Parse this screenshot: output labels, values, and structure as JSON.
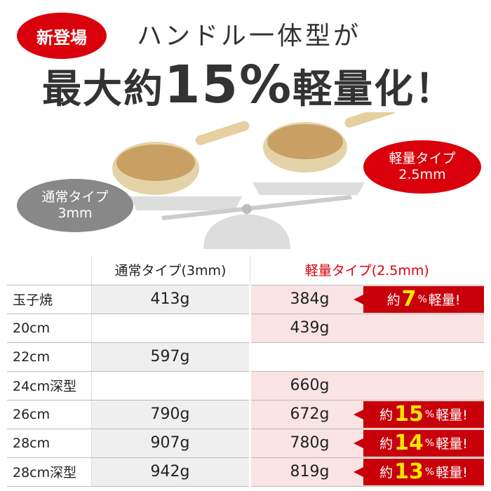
{
  "badge": "新登場",
  "headline1": "ハンドル一体型が",
  "headline2": {
    "pre": "最大約",
    "num": "15%",
    "post": "軽量化！"
  },
  "bubbles": {
    "normal": [
      "通常タイプ",
      "3mm"
    ],
    "light": [
      "軽量タイプ",
      "2.5mm"
    ]
  },
  "table": {
    "headers": [
      "",
      "通常タイプ(3mm)",
      "軽量タイプ(2.5mm)"
    ],
    "rows": [
      {
        "label": "玉子焼",
        "normal": "413g",
        "light": "384g",
        "saving": "7"
      },
      {
        "label": "20cm",
        "normal": "",
        "light": "439g",
        "saving": ""
      },
      {
        "label": "22cm",
        "normal": "597g",
        "light": "",
        "saving": ""
      },
      {
        "label": "24cm深型",
        "normal": "",
        "light": "660g",
        "saving": ""
      },
      {
        "label": "26cm",
        "normal": "790g",
        "light": "672g",
        "saving": "15"
      },
      {
        "label": "28cm",
        "normal": "907g",
        "light": "780g",
        "saving": "14"
      },
      {
        "label": "28cm深型",
        "normal": "942g",
        "light": "819g",
        "saving": "13"
      }
    ],
    "saving_prefix": "約",
    "saving_unit": "%",
    "saving_suffix": "軽量!"
  },
  "colors": {
    "accent": "#d9000c",
    "highlight": "#ffe600",
    "light_cell": "#f9e3e3",
    "normal_cell": "#efefef"
  }
}
